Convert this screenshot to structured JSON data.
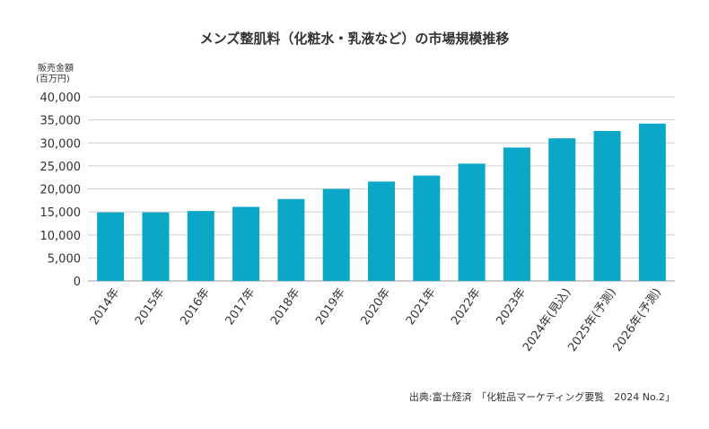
{
  "chart_data": {
    "type": "bar",
    "title": "メンズ整肌料（化粧水・乳液など）の市場規模推移",
    "ylabel_line1": "販売金額",
    "ylabel_line2": "(百万円)",
    "categories": [
      "2014年",
      "2015年",
      "2016年",
      "2017年",
      "2018年",
      "2019年",
      "2020年",
      "2021年",
      "2022年",
      "2023年",
      "2024年(見込)",
      "2025年(予測)",
      "2026年(予測)"
    ],
    "values": [
      14900,
      14900,
      15200,
      16100,
      17800,
      20000,
      21600,
      22900,
      25500,
      29000,
      31000,
      32600,
      34200
    ],
    "ylim": [
      0,
      40000
    ],
    "yticks": [
      "0",
      "5,000",
      "10,000",
      "15,000",
      "20,000",
      "25,000",
      "30,000",
      "35,000",
      "40,000"
    ],
    "ytick_values": [
      0,
      5000,
      10000,
      15000,
      20000,
      25000,
      30000,
      35000,
      40000
    ],
    "grid": true,
    "bar_color": "#0aa7c6",
    "source": "出典:富士経済　「化粧品マーケティング要覧　2024 No.2」"
  }
}
